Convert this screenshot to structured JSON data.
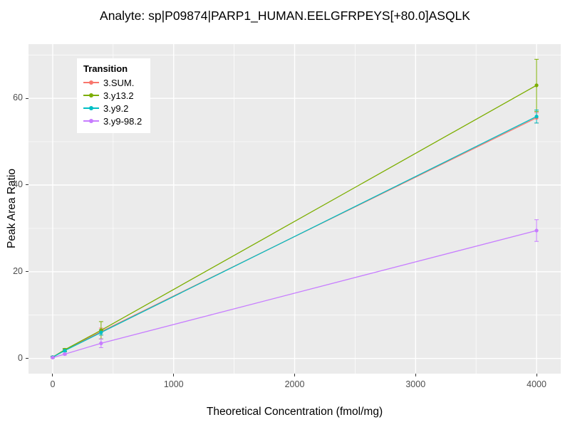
{
  "chart_data": {
    "type": "line",
    "title": "Analyte: sp|P09874|PARP1_HUMAN.EELGFRPEYS[+80.0]ASQLK",
    "xlabel": "Theoretical Concentration (fmol/mg)",
    "ylabel": "Peak Area Ratio",
    "legend_title": "Transition",
    "x": [
      0,
      100,
      400,
      4000
    ],
    "series": [
      {
        "name": "3.SUM.",
        "color": "#F8766D",
        "values": [
          0.3,
          1.9,
          6.2,
          55.5
        ],
        "errors": [
          0.2,
          0.3,
          0.8,
          1.2
        ]
      },
      {
        "name": "3.y13.2",
        "color": "#7CAE00",
        "values": [
          0.3,
          2.0,
          6.5,
          63.0
        ],
        "errors": [
          0.2,
          0.3,
          2.0,
          6.0
        ]
      },
      {
        "name": "3.y9.2",
        "color": "#00BFC4",
        "values": [
          0.3,
          1.8,
          6.0,
          55.8
        ],
        "errors": [
          0.2,
          0.3,
          0.6,
          1.5
        ]
      },
      {
        "name": "3.y9-98.2",
        "color": "#C77CFF",
        "values": [
          0.2,
          1.0,
          3.5,
          29.5
        ],
        "errors": [
          0.1,
          0.2,
          1.0,
          2.5
        ]
      }
    ],
    "x_major": [
      0,
      1000,
      2000,
      3000,
      4000
    ],
    "x_minor": [
      500,
      1500,
      2500,
      3500
    ],
    "y_major": [
      0,
      20,
      40,
      60
    ],
    "y_minor": [
      10,
      30,
      50,
      70
    ],
    "x_tick_labels": [
      "0",
      "1000",
      "2000",
      "3000",
      "4000"
    ],
    "y_tick_labels": [
      "0",
      "20",
      "40",
      "60"
    ],
    "xlim": [
      -200,
      4200
    ],
    "ylim": [
      -3.5,
      72.5
    ],
    "grid": true,
    "legend_position": "top-left-inside",
    "panel_background": "#EBEBEB",
    "grid_color": "#FFFFFF",
    "tick_label_color": "#4D4D4D"
  }
}
